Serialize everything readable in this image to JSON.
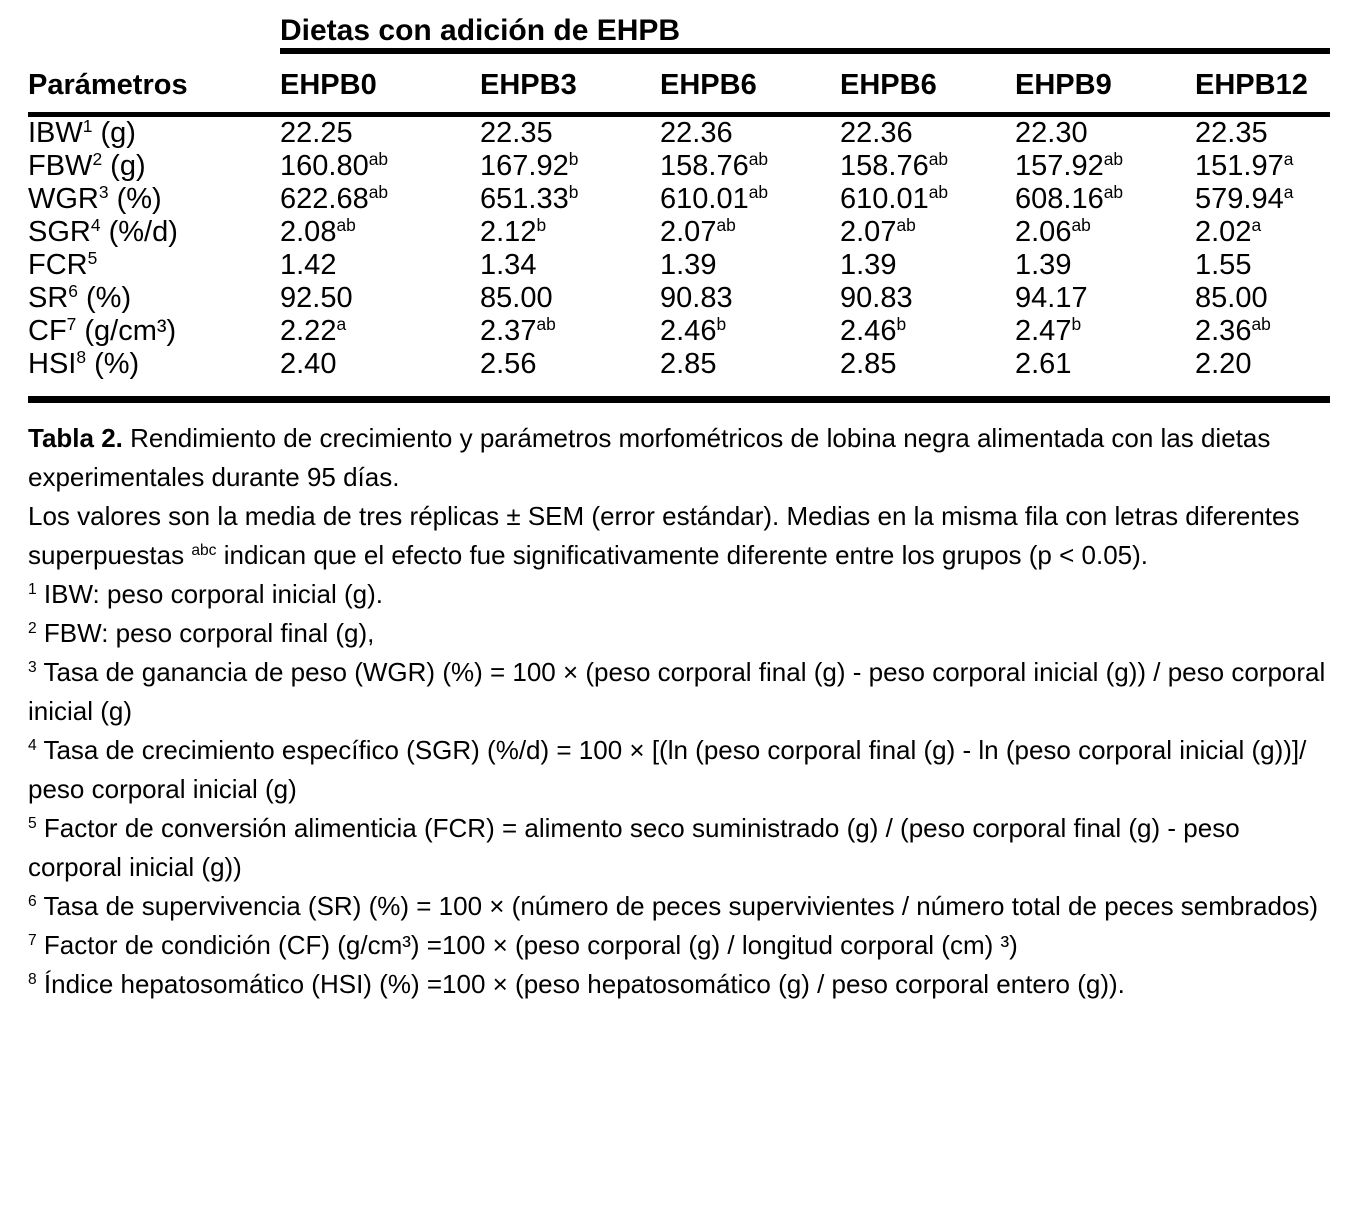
{
  "table": {
    "spanner_title": "Dietas con adición de EHPB",
    "param_header": "Parámetros",
    "columns": [
      "EHPB0",
      "EHPB3",
      "EHPB6",
      "EHPB6",
      "EHPB9",
      "EHPB12"
    ],
    "rows": [
      {
        "label": "IBW",
        "sup": "1",
        "unit": " (g)",
        "cells": [
          {
            "v": "22.25",
            "s": ""
          },
          {
            "v": "22.35",
            "s": ""
          },
          {
            "v": "22.36",
            "s": ""
          },
          {
            "v": "22.36",
            "s": ""
          },
          {
            "v": "22.30",
            "s": ""
          },
          {
            "v": "22.35",
            "s": ""
          }
        ]
      },
      {
        "label": "FBW",
        "sup": "2",
        "unit": " (g)",
        "cells": [
          {
            "v": "160.80",
            "s": "ab"
          },
          {
            "v": "167.92",
            "s": "b"
          },
          {
            "v": "158.76",
            "s": "ab"
          },
          {
            "v": "158.76",
            "s": "ab"
          },
          {
            "v": "157.92",
            "s": "ab"
          },
          {
            "v": "151.97",
            "s": "a"
          }
        ]
      },
      {
        "label": "WGR",
        "sup": "3",
        "unit": " (%)",
        "cells": [
          {
            "v": "622.68",
            "s": "ab"
          },
          {
            "v": "651.33",
            "s": "b"
          },
          {
            "v": "610.01",
            "s": "ab"
          },
          {
            "v": "610.01",
            "s": "ab"
          },
          {
            "v": "608.16",
            "s": "ab"
          },
          {
            "v": "579.94",
            "s": "a"
          }
        ]
      },
      {
        "label": "SGR",
        "sup": "4",
        "unit": " (%/d)",
        "cells": [
          {
            "v": "2.08",
            "s": "ab"
          },
          {
            "v": "2.12",
            "s": "b"
          },
          {
            "v": "2.07",
            "s": "ab"
          },
          {
            "v": "2.07",
            "s": "ab"
          },
          {
            "v": "2.06",
            "s": "ab"
          },
          {
            "v": "2.02",
            "s": "a"
          }
        ]
      },
      {
        "label": "FCR",
        "sup": "5",
        "unit": "",
        "cells": [
          {
            "v": "1.42",
            "s": ""
          },
          {
            "v": "1.34",
            "s": ""
          },
          {
            "v": "1.39",
            "s": ""
          },
          {
            "v": "1.39",
            "s": ""
          },
          {
            "v": "1.39",
            "s": ""
          },
          {
            "v": "1.55",
            "s": ""
          }
        ]
      },
      {
        "label": "SR",
        "sup": "6",
        "unit": " (%)",
        "cells": [
          {
            "v": "92.50",
            "s": ""
          },
          {
            "v": "85.00",
            "s": ""
          },
          {
            "v": "90.83",
            "s": ""
          },
          {
            "v": "90.83",
            "s": ""
          },
          {
            "v": "94.17",
            "s": ""
          },
          {
            "v": "85.00",
            "s": ""
          }
        ]
      },
      {
        "label": "CF",
        "sup": "7",
        "unit": " (g/cm³)",
        "cells": [
          {
            "v": "2.22",
            "s": "a"
          },
          {
            "v": "2.37",
            "s": "ab"
          },
          {
            "v": "2.46",
            "s": "b"
          },
          {
            "v": "2.46",
            "s": "b"
          },
          {
            "v": "2.47",
            "s": "b"
          },
          {
            "v": "2.36",
            "s": "ab"
          }
        ]
      },
      {
        "label": "HSI",
        "sup": "8",
        "unit": " (%)",
        "cells": [
          {
            "v": "2.40",
            "s": ""
          },
          {
            "v": "2.56",
            "s": ""
          },
          {
            "v": "2.85",
            "s": ""
          },
          {
            "v": "2.85",
            "s": ""
          },
          {
            "v": "2.61",
            "s": ""
          },
          {
            "v": "2.20",
            "s": ""
          }
        ]
      }
    ]
  },
  "caption": {
    "label": "Tabla 2.",
    "text": " Rendimiento de crecimiento y parámetros morfométricos de lobina negra alimentada con las dietas experimentales durante 95 días."
  },
  "note": {
    "part1": "Los valores son la media de tres réplicas ± SEM (error estándar). Medias en la misma fila con letras diferentes superpuestas ",
    "sup": "abc",
    "part2": " indican que el efecto fue significativamente diferente entre los grupos (p < 0.05)."
  },
  "footnotes": [
    {
      "sup": "1",
      "text": "IBW: peso corporal inicial (g)."
    },
    {
      "sup": "2",
      "text": "FBW: peso corporal final (g),"
    },
    {
      "sup": "3",
      "text": "Tasa de ganancia de peso (WGR) (%) = 100 × (peso corporal final (g) - peso corporal inicial (g)) / peso corporal inicial (g)"
    },
    {
      "sup": "4",
      "text": "Tasa de crecimiento específico (SGR) (%/d) = 100 × [(ln (peso corporal final (g) - ln (peso corporal inicial (g))]/ peso corporal inicial (g)"
    },
    {
      "sup": "5",
      "text": "Factor de conversión alimenticia (FCR) = alimento seco suministrado (g) / (peso corporal final (g) - peso corporal inicial (g))"
    },
    {
      "sup": "6",
      "text": "Tasa de supervivencia (SR) (%) = 100 × (número de peces supervivientes / número total de peces sembrados)"
    },
    {
      "sup": "7",
      "text": "Factor de condición (CF) (g/cm³) =100 × (peso corporal (g) / longitud corporal (cm) ³)"
    },
    {
      "sup": "8",
      "text": "Índice hepatosomático (HSI) (%) =100 × (peso hepatosomático (g) / peso corporal entero (g))."
    }
  ]
}
